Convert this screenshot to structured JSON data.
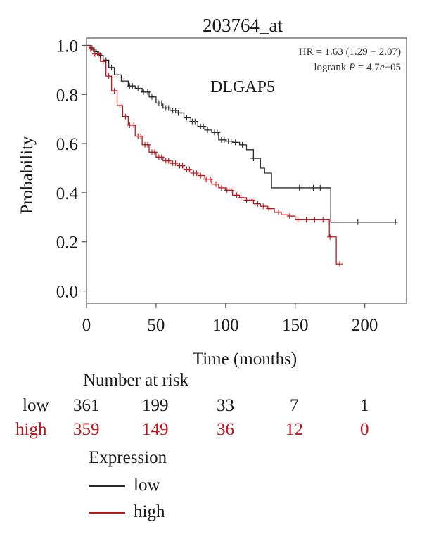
{
  "chart_data": {
    "type": "line",
    "subtype": "kaplan-meier",
    "title": "203764_at",
    "gene_label": "DLGAP5",
    "stats": {
      "hr": "HR = 1.63 (1.29 − 2.07)",
      "logrank_prefix": "logrank ",
      "logrank_p": "P",
      "logrank_value": " = 4.7",
      "logrank_e": "e",
      "logrank_exp": "−05"
    },
    "xlabel": "Time (months)",
    "ylabel": "Probability",
    "xlim": [
      0,
      230
    ],
    "ylim": [
      -0.05,
      1.03
    ],
    "xticks": [
      0,
      50,
      100,
      150,
      200
    ],
    "xtick_labels": [
      "0",
      "50",
      "100",
      "150",
      "200"
    ],
    "yticks": [
      0.0,
      0.2,
      0.4,
      0.6,
      0.8,
      1.0
    ],
    "ytick_labels": [
      "0.0",
      "0.2",
      "0.4",
      "0.6",
      "0.8",
      "1.0"
    ],
    "series": [
      {
        "name": "low",
        "color": "#2b2b2b",
        "x": [
          0,
          2,
          5,
          8,
          12,
          16,
          20,
          25,
          30,
          35,
          40,
          45,
          50,
          55,
          60,
          65,
          70,
          75,
          80,
          85,
          90,
          95,
          100,
          105,
          110,
          115,
          120,
          125,
          128,
          133,
          175,
          175.5,
          222
        ],
        "y": [
          1.0,
          0.99,
          0.975,
          0.96,
          0.94,
          0.91,
          0.88,
          0.855,
          0.835,
          0.825,
          0.81,
          0.79,
          0.765,
          0.745,
          0.735,
          0.725,
          0.705,
          0.69,
          0.67,
          0.655,
          0.645,
          0.615,
          0.61,
          0.605,
          0.595,
          0.575,
          0.54,
          0.5,
          0.48,
          0.42,
          0.42,
          0.28,
          0.28
        ],
        "censor_x": [
          4,
          7,
          10,
          14,
          18,
          22,
          27,
          31,
          33,
          37,
          41,
          44,
          47,
          52,
          54,
          57,
          59,
          62,
          64,
          66,
          68,
          72,
          76,
          78,
          82,
          84,
          87,
          92,
          94,
          97,
          99,
          102,
          104,
          107,
          112,
          120,
          153,
          163,
          168,
          195,
          222
        ]
      },
      {
        "name": "high",
        "color": "#c0141a",
        "x": [
          0,
          3,
          6,
          10,
          14,
          18,
          22,
          26,
          30,
          35,
          40,
          45,
          50,
          55,
          60,
          65,
          70,
          75,
          80,
          85,
          90,
          95,
          100,
          105,
          110,
          115,
          120,
          125,
          130,
          135,
          140,
          145,
          150,
          174,
          174.5,
          179,
          179.5,
          182
        ],
        "y": [
          1.0,
          0.985,
          0.965,
          0.935,
          0.875,
          0.815,
          0.755,
          0.71,
          0.675,
          0.63,
          0.595,
          0.565,
          0.545,
          0.53,
          0.52,
          0.51,
          0.495,
          0.48,
          0.47,
          0.455,
          0.435,
          0.42,
          0.41,
          0.39,
          0.38,
          0.37,
          0.355,
          0.345,
          0.335,
          0.32,
          0.31,
          0.305,
          0.29,
          0.29,
          0.22,
          0.22,
          0.11,
          0.11
        ],
        "censor_x": [
          3,
          6,
          9,
          12,
          16,
          20,
          24,
          28,
          31,
          34,
          37,
          39,
          42,
          44,
          47,
          49,
          52,
          54,
          57,
          59,
          62,
          64,
          67,
          69,
          72,
          74,
          77,
          79,
          82,
          86,
          89,
          93,
          97,
          101,
          104,
          108,
          111,
          115,
          119,
          123,
          127,
          131,
          138,
          146,
          152,
          158,
          164,
          170,
          175,
          182
        ]
      }
    ]
  },
  "risk_table": {
    "title": "Number at risk",
    "rows": [
      {
        "label": "low",
        "color": "#1a1a1a",
        "values": [
          "361",
          "199",
          "33",
          "7",
          "1"
        ]
      },
      {
        "label": "high",
        "color": "#c0141a",
        "values": [
          "359",
          "149",
          "36",
          "12",
          "0"
        ]
      }
    ]
  },
  "legend": {
    "title": "Expression",
    "items": [
      {
        "label": "low",
        "color": "#2b2b2b"
      },
      {
        "label": "high",
        "color": "#c0141a"
      }
    ]
  }
}
